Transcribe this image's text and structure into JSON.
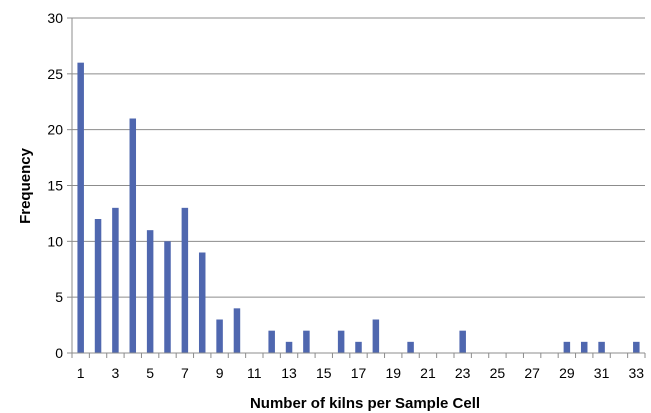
{
  "chart_data": {
    "type": "bar",
    "title": "",
    "xlabel": "Number of kilns per Sample Cell",
    "ylabel": "Frequency",
    "ylim": [
      0,
      30
    ],
    "y_ticks": [
      0,
      5,
      10,
      15,
      20,
      25,
      30
    ],
    "x_tick_labels": [
      "1",
      "3",
      "5",
      "7",
      "9",
      "11",
      "13",
      "15",
      "17",
      "19",
      "21",
      "23",
      "25",
      "27",
      "29",
      "31",
      "33"
    ],
    "grid": true,
    "categories": [
      1,
      2,
      3,
      4,
      5,
      6,
      7,
      8,
      9,
      10,
      11,
      12,
      13,
      14,
      15,
      16,
      17,
      18,
      19,
      20,
      21,
      22,
      23,
      24,
      25,
      26,
      27,
      28,
      29,
      30,
      31,
      32,
      33
    ],
    "values": [
      26,
      12,
      13,
      21,
      11,
      10,
      13,
      9,
      3,
      4,
      0,
      2,
      1,
      2,
      0,
      2,
      1,
      3,
      0,
      1,
      0,
      0,
      2,
      0,
      0,
      0,
      0,
      0,
      1,
      1,
      1,
      0,
      1
    ],
    "bar_color": "#4F67AF",
    "grid_color": "#8C8C8C"
  }
}
